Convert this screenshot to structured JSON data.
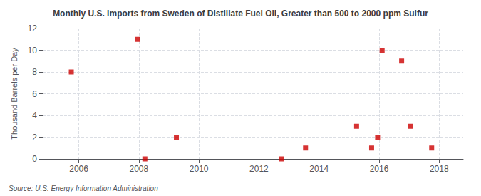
{
  "chart_data": {
    "type": "scatter",
    "title": "Monthly U.S. Imports from Sweden of Distillate Fuel Oil, Greater than 500 to 2000 ppm Sulfur",
    "ylabel": "Thousand Barrels per Day",
    "annotations": [
      "Source: U.S. Energy Information Administration"
    ],
    "x": [
      2005.75,
      2007.95,
      2008.2,
      2009.25,
      2012.75,
      2013.55,
      2015.25,
      2015.75,
      2015.95,
      2016.1,
      2016.75,
      2017.05,
      2017.75
    ],
    "values": [
      8,
      11,
      0,
      2,
      0,
      1,
      3,
      1,
      2,
      10,
      9,
      3,
      1
    ],
    "color": "#cc0000",
    "marker": "square",
    "xlim": [
      2004.8,
      2018.8
    ],
    "ylim": [
      0,
      12
    ],
    "xticks": [
      2006,
      2008,
      2010,
      2012,
      2014,
      2016,
      2018
    ],
    "yticks": [
      0,
      2,
      4,
      6,
      8,
      10,
      12
    ],
    "grid": true
  }
}
